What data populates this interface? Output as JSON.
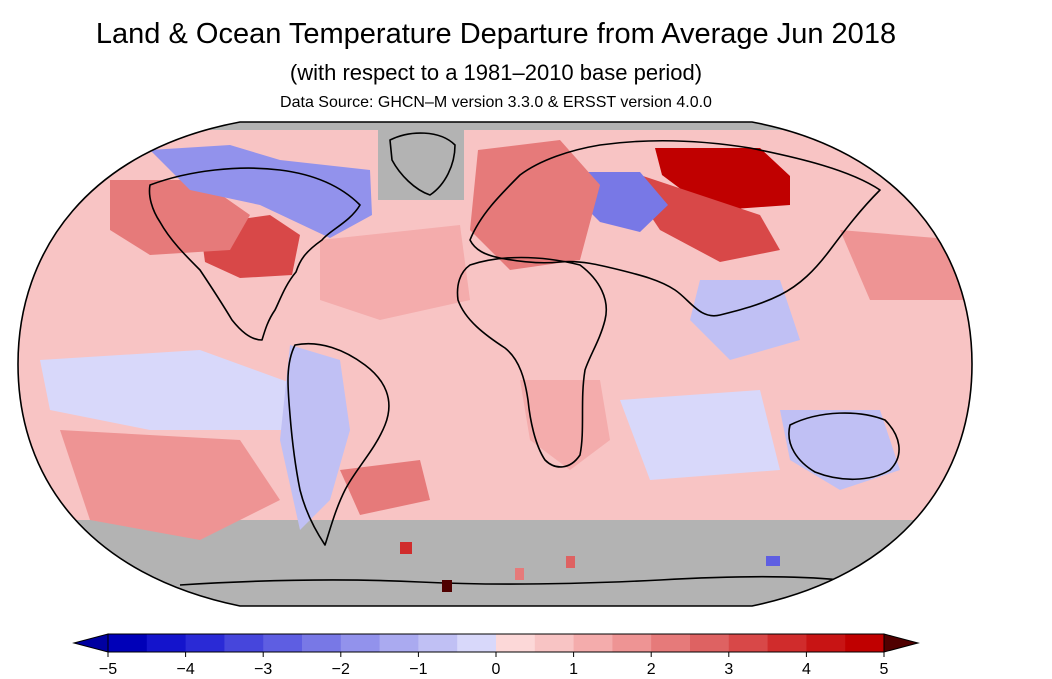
{
  "title": "Land & Ocean Temperature Departure from Average Jun 2018",
  "subtitle": "(with respect to a 1981–2010 base period)",
  "source": "Data Source: GHCN–M version 3.3.0 & ERSST version 4.0.0",
  "colors": {
    "missing_data": "#b3b3b3",
    "ocean_background": "#f8c4c4",
    "coastline": "#000000",
    "scale": [
      "#0000b8",
      "#1414cc",
      "#2a2ad6",
      "#4646dc",
      "#5e5ee2",
      "#7878e6",
      "#9292ec",
      "#aaaaf0",
      "#c0c0f4",
      "#d8d8fa",
      "#fcd8d8",
      "#f8c4c4",
      "#f4acac",
      "#ee9494",
      "#e67a7a",
      "#de6262",
      "#d84848",
      "#d02c2c",
      "#c81414",
      "#c00000"
    ],
    "scale_low_end": "#0000a0",
    "scale_high_end": "#500000"
  },
  "colorbar": {
    "min": -5,
    "max": 5,
    "step": 0.5,
    "tick_labels": [
      "−5",
      "−4",
      "−3",
      "−2",
      "−1",
      "0",
      "1",
      "2",
      "3",
      "4",
      "5"
    ]
  },
  "map": {
    "projection": "robinson-like world map",
    "patches": [
      {
        "region": "Siberia (central-north Russia)",
        "level": 4.5
      },
      {
        "region": "Western Russia",
        "level": 3
      },
      {
        "region": "Central Russia",
        "level": -2.5
      },
      {
        "region": "Eastern United States",
        "level": 3
      },
      {
        "region": "Central United States",
        "level": 2
      },
      {
        "region": "Europe",
        "level": 2
      },
      {
        "region": "Canadian Arctic / Greenland west",
        "level": -2
      },
      {
        "region": "North Atlantic",
        "level": 1
      },
      {
        "region": "Equatorial Pacific",
        "level": -0.5
      },
      {
        "region": "South Pacific",
        "level": 1.5
      },
      {
        "region": "South America",
        "level": -1
      },
      {
        "region": "Southern Africa",
        "level": 1
      },
      {
        "region": "Australia",
        "level": -1
      },
      {
        "region": "South Atlantic",
        "level": 2
      }
    ]
  }
}
